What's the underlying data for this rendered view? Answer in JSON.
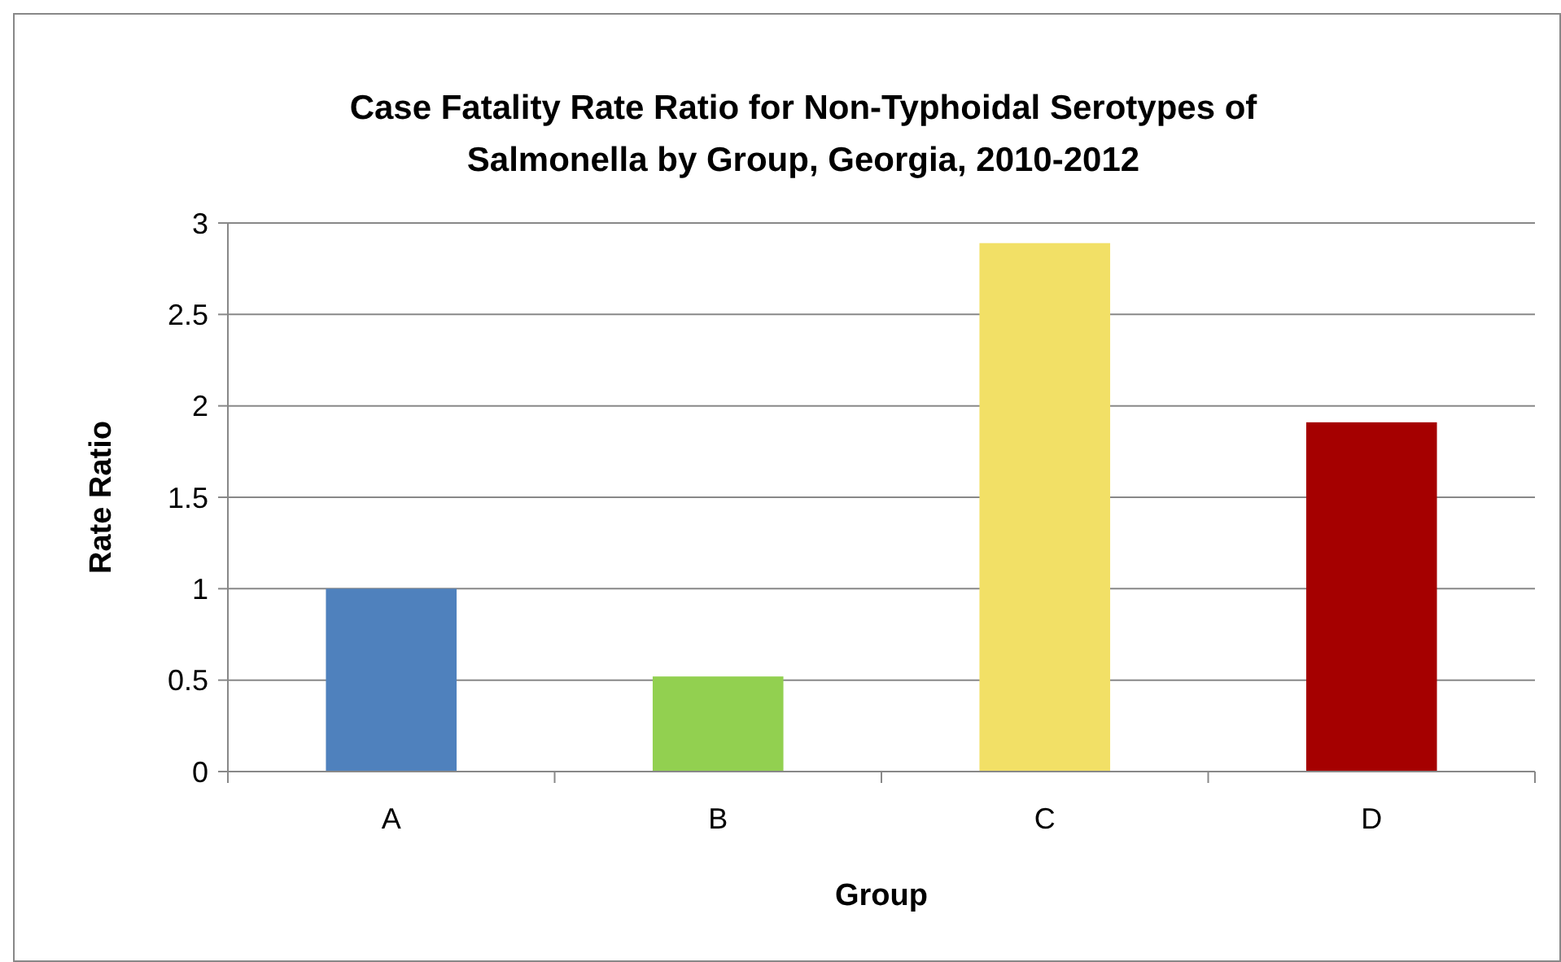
{
  "chart_data": {
    "type": "bar",
    "title": "Case Fatality Rate Ratio for Non-Typhoidal Serotypes of Salmonella by Group, Georgia, 2010-2012",
    "xlabel": "Group",
    "ylabel": "Rate Ratio",
    "categories": [
      "A",
      "B",
      "C",
      "D"
    ],
    "values": [
      1.0,
      0.52,
      2.89,
      1.91
    ],
    "colors": [
      "#4f81bd",
      "#92d050",
      "#f2e066",
      "#a50000"
    ],
    "ylim": [
      0,
      3
    ],
    "yticks": [
      0,
      0.5,
      1,
      1.5,
      2,
      2.5,
      3
    ],
    "grid": "y"
  }
}
